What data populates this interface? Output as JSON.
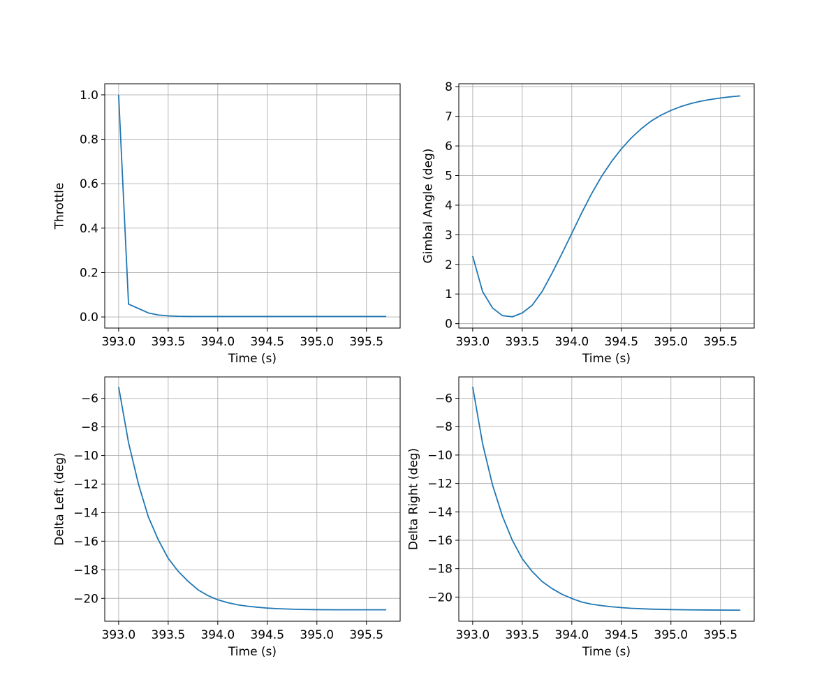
{
  "colors": {
    "series": "#1f77b4",
    "grid": "#b0b0b0"
  },
  "chart_data": [
    {
      "type": "line",
      "xlabel": "Time (s)",
      "ylabel": "Throttle",
      "grid": true,
      "xlim": [
        392.86,
        395.84
      ],
      "ylim": [
        -0.05,
        1.05
      ],
      "xticks": [
        393.0,
        393.5,
        394.0,
        394.5,
        395.0,
        395.5
      ],
      "xtick_labels": [
        "393.0",
        "393.5",
        "394.0",
        "394.5",
        "395.0",
        "395.5"
      ],
      "yticks": [
        0.0,
        0.2,
        0.4,
        0.6,
        0.8,
        1.0
      ],
      "ytick_labels": [
        "0.0",
        "0.2",
        "0.4",
        "0.6",
        "0.8",
        "1.0"
      ],
      "series": [
        {
          "x": [
            393.0,
            393.1,
            393.2,
            393.3,
            393.4,
            393.5,
            393.6,
            393.7,
            393.8,
            393.9,
            394.0,
            394.2,
            394.4,
            394.6,
            394.8,
            395.0,
            395.2,
            395.4,
            395.6,
            395.7
          ],
          "y": [
            1.0,
            0.058,
            0.038,
            0.018,
            0.009,
            0.005,
            0.003,
            0.002,
            0.002,
            0.002,
            0.002,
            0.002,
            0.002,
            0.002,
            0.002,
            0.002,
            0.002,
            0.002,
            0.002,
            0.002
          ]
        }
      ]
    },
    {
      "type": "line",
      "xlabel": "Time (s)",
      "ylabel": "Gimbal Angle (deg)",
      "grid": true,
      "xlim": [
        392.86,
        395.84
      ],
      "ylim": [
        -0.15,
        8.1
      ],
      "xticks": [
        393.0,
        393.5,
        394.0,
        394.5,
        395.0,
        395.5
      ],
      "xtick_labels": [
        "393.0",
        "393.5",
        "394.0",
        "394.5",
        "395.0",
        "395.5"
      ],
      "yticks": [
        0,
        1,
        2,
        3,
        4,
        5,
        6,
        7,
        8
      ],
      "ytick_labels": [
        "0",
        "1",
        "2",
        "3",
        "4",
        "5",
        "6",
        "7",
        "8"
      ],
      "series": [
        {
          "x": [
            393.0,
            393.1,
            393.2,
            393.3,
            393.4,
            393.5,
            393.6,
            393.7,
            393.8,
            393.9,
            394.0,
            394.1,
            394.2,
            394.3,
            394.4,
            394.5,
            394.6,
            394.7,
            394.8,
            394.9,
            395.0,
            395.1,
            395.2,
            395.3,
            395.4,
            395.5,
            395.6,
            395.7
          ],
          "y": [
            2.28,
            1.08,
            0.53,
            0.27,
            0.23,
            0.36,
            0.62,
            1.08,
            1.7,
            2.36,
            3.05,
            3.74,
            4.39,
            4.97,
            5.47,
            5.9,
            6.27,
            6.58,
            6.84,
            7.04,
            7.2,
            7.33,
            7.43,
            7.51,
            7.57,
            7.62,
            7.66,
            7.69
          ]
        }
      ]
    },
    {
      "type": "line",
      "xlabel": "Time (s)",
      "ylabel": "Delta Left (deg)",
      "grid": true,
      "xlim": [
        392.86,
        395.84
      ],
      "ylim": [
        -21.6,
        -4.5
      ],
      "xticks": [
        393.0,
        393.5,
        394.0,
        394.5,
        395.0,
        395.5
      ],
      "xtick_labels": [
        "393.0",
        "393.5",
        "394.0",
        "394.5",
        "395.0",
        "395.5"
      ],
      "yticks": [
        -20,
        -18,
        -16,
        -14,
        -12,
        -10,
        -8,
        -6
      ],
      "ytick_labels": [
        "−20",
        "−18",
        "−16",
        "−14",
        "−12",
        "−10",
        "−8",
        "−6"
      ],
      "series": [
        {
          "x": [
            393.0,
            393.1,
            393.2,
            393.3,
            393.4,
            393.5,
            393.6,
            393.7,
            393.8,
            393.9,
            394.0,
            394.1,
            394.2,
            394.3,
            394.4,
            394.5,
            394.6,
            394.8,
            395.0,
            395.2,
            395.4,
            395.6,
            395.7
          ],
          "y": [
            -5.2,
            -9.1,
            -12.0,
            -14.3,
            -15.9,
            -17.2,
            -18.1,
            -18.8,
            -19.4,
            -19.8,
            -20.1,
            -20.3,
            -20.45,
            -20.55,
            -20.62,
            -20.68,
            -20.72,
            -20.77,
            -20.79,
            -20.8,
            -20.8,
            -20.8,
            -20.8
          ]
        }
      ]
    },
    {
      "type": "line",
      "xlabel": "Time (s)",
      "ylabel": "Delta Right (deg)",
      "grid": true,
      "xlim": [
        392.86,
        395.84
      ],
      "ylim": [
        -21.7,
        -4.5
      ],
      "xticks": [
        393.0,
        393.5,
        394.0,
        394.5,
        395.0,
        395.5
      ],
      "xtick_labels": [
        "393.0",
        "393.5",
        "394.0",
        "394.5",
        "395.0",
        "395.5"
      ],
      "yticks": [
        -20,
        -18,
        -16,
        -14,
        -12,
        -10,
        -8,
        -6
      ],
      "ytick_labels": [
        "−20",
        "−18",
        "−16",
        "−14",
        "−12",
        "−10",
        "−8",
        "−6"
      ],
      "series": [
        {
          "x": [
            393.0,
            393.1,
            393.2,
            393.3,
            393.4,
            393.5,
            393.6,
            393.7,
            393.8,
            393.9,
            394.0,
            394.1,
            394.2,
            394.3,
            394.4,
            394.5,
            394.6,
            394.8,
            395.0,
            395.2,
            395.4,
            395.6,
            395.7
          ],
          "y": [
            -5.2,
            -9.2,
            -12.1,
            -14.3,
            -16.0,
            -17.3,
            -18.2,
            -18.9,
            -19.4,
            -19.8,
            -20.1,
            -20.35,
            -20.5,
            -20.6,
            -20.68,
            -20.74,
            -20.79,
            -20.85,
            -20.88,
            -20.9,
            -20.91,
            -20.92,
            -20.92
          ]
        }
      ]
    }
  ]
}
